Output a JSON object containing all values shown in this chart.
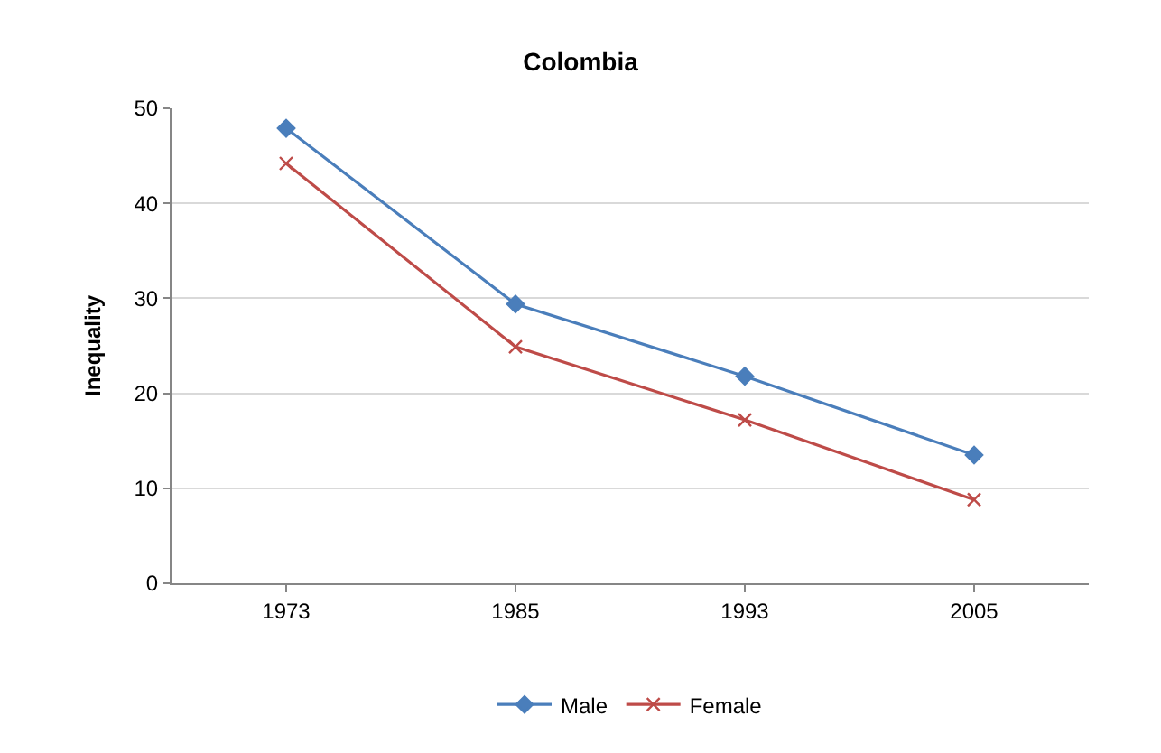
{
  "chart_data": {
    "type": "line",
    "title": "Colombia",
    "ylabel": "Inequality",
    "categories": [
      "1973",
      "1985",
      "1993",
      "2005"
    ],
    "series": [
      {
        "name": "Male",
        "color": "#4a7ebb",
        "marker": "diamond",
        "values": [
          47.9,
          29.4,
          21.8,
          13.5
        ]
      },
      {
        "name": "Female",
        "color": "#be4b48",
        "marker": "cross",
        "values": [
          44.2,
          24.9,
          17.2,
          8.8
        ]
      }
    ],
    "ylim": [
      0,
      50
    ],
    "yticks": [
      0,
      10,
      20,
      30,
      40,
      50
    ],
    "grid": "y",
    "legend": "bottom",
    "line_style": "solid"
  }
}
